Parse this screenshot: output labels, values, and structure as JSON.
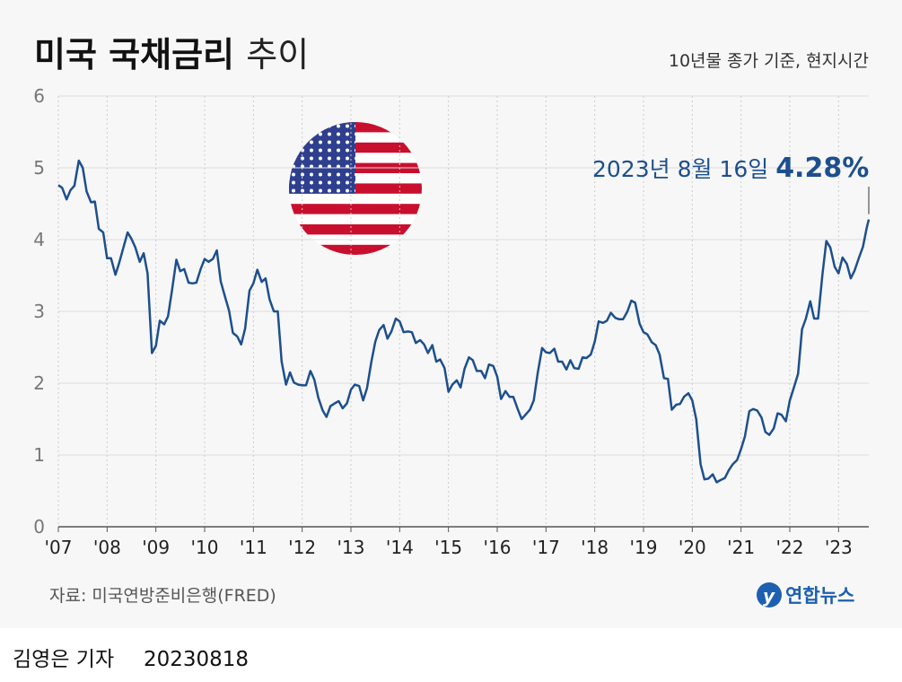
{
  "chart_data": {
    "type": "line",
    "title": {
      "bold": "미국 국채금리",
      "light": "추이"
    },
    "note": "10년물 종가 기준, 현지시간",
    "annotation": {
      "text": "2023년 8월 16일",
      "value": 4.28,
      "value_label": "4.28%"
    },
    "source": "자료: 미국연방준비은행(FRED)",
    "logo": "연합뉴스",
    "byline": "김영은 기자",
    "date": "20230818",
    "ylim": [
      0,
      6
    ],
    "yticks": [
      0,
      1,
      2,
      3,
      4,
      5,
      6
    ],
    "xlim": [
      2007,
      2023.62
    ],
    "xticks": [
      {
        "value": 2007,
        "label": "'07"
      },
      {
        "value": 2008,
        "label": "'08"
      },
      {
        "value": 2009,
        "label": "'09"
      },
      {
        "value": 2010,
        "label": "'10"
      },
      {
        "value": 2011,
        "label": "'11"
      },
      {
        "value": 2012,
        "label": "'12"
      },
      {
        "value": 2013,
        "label": "'13"
      },
      {
        "value": 2014,
        "label": "'14"
      },
      {
        "value": 2015,
        "label": "'15"
      },
      {
        "value": 2016,
        "label": "'16"
      },
      {
        "value": 2017,
        "label": "'17"
      },
      {
        "value": 2018,
        "label": "'18"
      },
      {
        "value": 2019,
        "label": "'19"
      },
      {
        "value": 2020,
        "label": "'20"
      },
      {
        "value": 2021,
        "label": "'21"
      },
      {
        "value": 2022,
        "label": "'22"
      },
      {
        "value": 2023,
        "label": "'23"
      }
    ],
    "grid": true,
    "color": "#1d4f8e",
    "x": [
      2007,
      2007.08,
      2007.17,
      2007.25,
      2007.33,
      2007.42,
      2007.5,
      2007.58,
      2007.67,
      2007.75,
      2007.83,
      2007.92,
      2008,
      2008.08,
      2008.17,
      2008.25,
      2008.33,
      2008.42,
      2008.5,
      2008.58,
      2008.67,
      2008.75,
      2008.83,
      2008.92,
      2009,
      2009.08,
      2009.17,
      2009.25,
      2009.33,
      2009.42,
      2009.5,
      2009.58,
      2009.67,
      2009.75,
      2009.83,
      2009.92,
      2010,
      2010.08,
      2010.17,
      2010.25,
      2010.33,
      2010.42,
      2010.5,
      2010.58,
      2010.67,
      2010.75,
      2010.83,
      2010.92,
      2011,
      2011.08,
      2011.17,
      2011.25,
      2011.33,
      2011.42,
      2011.5,
      2011.58,
      2011.67,
      2011.75,
      2011.83,
      2011.92,
      2012,
      2012.08,
      2012.17,
      2012.25,
      2012.33,
      2012.42,
      2012.5,
      2012.58,
      2012.67,
      2012.75,
      2012.83,
      2012.92,
      2013,
      2013.08,
      2013.17,
      2013.25,
      2013.33,
      2013.42,
      2013.5,
      2013.58,
      2013.67,
      2013.75,
      2013.83,
      2013.92,
      2014,
      2014.08,
      2014.17,
      2014.25,
      2014.33,
      2014.42,
      2014.5,
      2014.58,
      2014.67,
      2014.75,
      2014.83,
      2014.92,
      2015,
      2015.08,
      2015.17,
      2015.25,
      2015.33,
      2015.42,
      2015.5,
      2015.58,
      2015.67,
      2015.75,
      2015.83,
      2015.92,
      2016,
      2016.08,
      2016.17,
      2016.25,
      2016.33,
      2016.42,
      2016.5,
      2016.58,
      2016.67,
      2016.75,
      2016.83,
      2016.92,
      2017,
      2017.08,
      2017.17,
      2017.25,
      2017.33,
      2017.42,
      2017.5,
      2017.58,
      2017.67,
      2017.75,
      2017.83,
      2017.92,
      2018,
      2018.08,
      2018.17,
      2018.25,
      2018.33,
      2018.42,
      2018.5,
      2018.58,
      2018.67,
      2018.75,
      2018.83,
      2018.92,
      2019,
      2019.08,
      2019.17,
      2019.25,
      2019.33,
      2019.42,
      2019.5,
      2019.58,
      2019.67,
      2019.75,
      2019.83,
      2019.92,
      2020,
      2020.08,
      2020.17,
      2020.25,
      2020.33,
      2020.42,
      2020.5,
      2020.58,
      2020.67,
      2020.75,
      2020.83,
      2020.92,
      2021,
      2021.08,
      2021.17,
      2021.25,
      2021.33,
      2021.42,
      2021.5,
      2021.58,
      2021.67,
      2021.75,
      2021.83,
      2021.92,
      2022,
      2022.08,
      2022.17,
      2022.25,
      2022.33,
      2022.42,
      2022.5,
      2022.58,
      2022.67,
      2022.75,
      2022.83,
      2022.92,
      2023,
      2023.08,
      2023.17,
      2023.25,
      2023.33,
      2023.42,
      2023.5,
      2023.58,
      2023.62
    ],
    "values": [
      4.76,
      4.72,
      4.56,
      4.69,
      4.75,
      5.1,
      5.0,
      4.67,
      4.52,
      4.53,
      4.15,
      4.1,
      3.74,
      3.74,
      3.51,
      3.68,
      3.88,
      4.1,
      4.01,
      3.89,
      3.69,
      3.81,
      3.53,
      2.42,
      2.52,
      2.87,
      2.82,
      2.93,
      3.29,
      3.72,
      3.56,
      3.59,
      3.4,
      3.39,
      3.4,
      3.59,
      3.73,
      3.69,
      3.73,
      3.85,
      3.42,
      3.2,
      3.01,
      2.7,
      2.65,
      2.54,
      2.76,
      3.29,
      3.39,
      3.58,
      3.41,
      3.46,
      3.17,
      3.0,
      3.0,
      2.3,
      1.98,
      2.15,
      2.01,
      1.98,
      1.97,
      1.97,
      2.17,
      2.05,
      1.8,
      1.62,
      1.53,
      1.68,
      1.72,
      1.75,
      1.65,
      1.72,
      1.91,
      1.98,
      1.96,
      1.76,
      1.93,
      2.3,
      2.58,
      2.74,
      2.81,
      2.62,
      2.72,
      2.9,
      2.86,
      2.71,
      2.72,
      2.71,
      2.56,
      2.6,
      2.54,
      2.42,
      2.53,
      2.3,
      2.33,
      2.21,
      1.88,
      1.98,
      2.04,
      1.94,
      2.2,
      2.36,
      2.32,
      2.17,
      2.17,
      2.07,
      2.26,
      2.24,
      2.09,
      1.78,
      1.89,
      1.81,
      1.81,
      1.64,
      1.5,
      1.56,
      1.63,
      1.76,
      2.14,
      2.49,
      2.43,
      2.42,
      2.48,
      2.3,
      2.3,
      2.19,
      2.32,
      2.21,
      2.2,
      2.36,
      2.35,
      2.4,
      2.58,
      2.86,
      2.84,
      2.87,
      2.98,
      2.91,
      2.89,
      2.89,
      3.0,
      3.15,
      3.12,
      2.83,
      2.71,
      2.68,
      2.57,
      2.53,
      2.4,
      2.07,
      2.06,
      1.63,
      1.7,
      1.71,
      1.81,
      1.86,
      1.76,
      1.5,
      0.87,
      0.66,
      0.67,
      0.73,
      0.62,
      0.65,
      0.68,
      0.79,
      0.87,
      0.93,
      1.08,
      1.26,
      1.61,
      1.64,
      1.62,
      1.52,
      1.32,
      1.28,
      1.37,
      1.58,
      1.56,
      1.47,
      1.76,
      1.93,
      2.13,
      2.75,
      2.9,
      3.14,
      2.9,
      2.9,
      3.52,
      3.98,
      3.89,
      3.62,
      3.53,
      3.75,
      3.66,
      3.46,
      3.57,
      3.75,
      3.9,
      4.17,
      4.28
    ]
  }
}
